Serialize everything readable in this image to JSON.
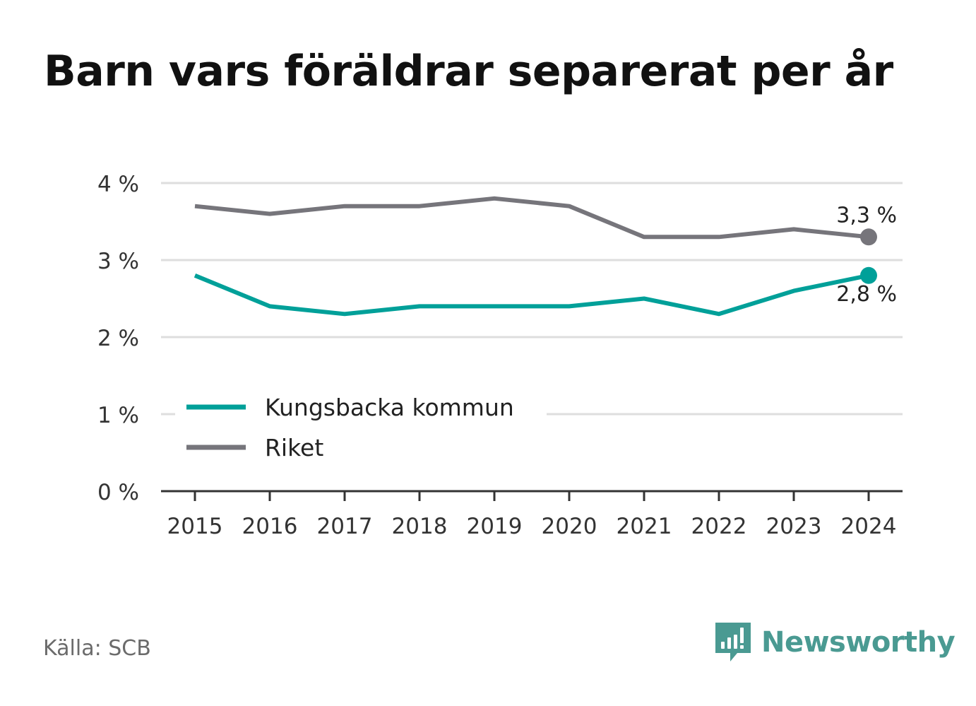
{
  "title": "Barn vars föräldrar separerat per år",
  "source": "Källa: SCB",
  "brand": {
    "name": "Newsworthy",
    "icon": "bar-chart-speech-bubble-icon",
    "color": "#4a9a92"
  },
  "chart_data": {
    "type": "line",
    "x": [
      "2015",
      "2016",
      "2017",
      "2018",
      "2019",
      "2020",
      "2021",
      "2022",
      "2023",
      "2024"
    ],
    "y_ticks": [
      "0 %",
      "1 %",
      "2 %",
      "3 %",
      "4 %"
    ],
    "ylim": [
      0,
      4
    ],
    "grid": true,
    "legend_position": "lower-left",
    "series": [
      {
        "name": "Kungsbacka kommun",
        "color": "#00a099",
        "values": [
          2.8,
          2.4,
          2.3,
          2.4,
          2.4,
          2.4,
          2.5,
          2.3,
          2.6,
          2.8
        ],
        "end_label": "2,8 %"
      },
      {
        "name": "Riket",
        "color": "#76757b",
        "values": [
          3.7,
          3.6,
          3.7,
          3.7,
          3.8,
          3.7,
          3.3,
          3.3,
          3.4,
          3.3
        ],
        "end_label": "3,3 %"
      }
    ]
  }
}
